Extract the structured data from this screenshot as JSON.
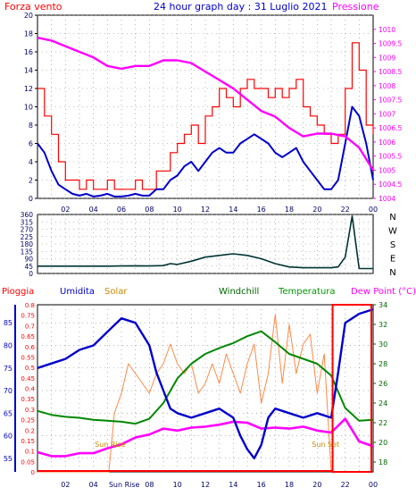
{
  "header": {
    "left_label": "Forza vento",
    "title": "24 hour graph day : 31 Luglio 2021",
    "right_label": "Pressione",
    "left_color": "#ff0000",
    "title_color": "#0000cc",
    "right_color": "#ff00ff"
  },
  "x_ticks": [
    "02",
    "04",
    "06",
    "08",
    "10",
    "12",
    "14",
    "16",
    "18",
    "20",
    "22",
    "00"
  ],
  "chart_data": [
    {
      "type": "line",
      "panel": "wind-pressure",
      "left_axis": {
        "label": "Forza vento",
        "ylim": [
          0,
          20
        ],
        "ticks": [
          0,
          2,
          4,
          6,
          8,
          10,
          12,
          14,
          16,
          18,
          20
        ]
      },
      "right_axis": {
        "label": "Pressione",
        "ylim": [
          1004,
          1010.5
        ],
        "ticks": [
          "1004",
          "1004.5",
          "1005",
          "1005.5",
          "1006",
          "1006.5",
          "1007",
          "1007.5",
          "1008",
          "1008.5",
          "1009",
          "1009.5",
          "1010"
        ]
      },
      "series": [
        {
          "name": "Forza vento",
          "color": "#ff0000",
          "axis": "left",
          "x": [
            0,
            0.5,
            1,
            1.5,
            2,
            2.5,
            3,
            3.5,
            4,
            4.5,
            5,
            5.5,
            6,
            6.5,
            7,
            7.5,
            8,
            8.5,
            9,
            9.5,
            10,
            10.5,
            11,
            11.5,
            12,
            12.5,
            13,
            13.5,
            14,
            14.5,
            15,
            15.5,
            16,
            16.5,
            17,
            17.5,
            18,
            18.5,
            19,
            19.5,
            20,
            20.5,
            21,
            21.5,
            22,
            22.5,
            23,
            23.5,
            24
          ],
          "values": [
            12,
            9,
            7,
            4,
            2,
            2,
            1,
            2,
            1,
            1,
            2,
            1,
            1,
            1,
            2,
            1,
            1,
            3,
            3,
            5,
            6,
            7,
            8,
            6,
            9,
            10,
            12,
            11,
            10,
            12,
            13,
            12,
            12,
            11,
            12,
            11,
            12,
            13,
            10,
            9,
            8,
            7,
            6,
            7,
            12,
            17,
            14,
            8,
            7
          ]
        },
        {
          "name": "",
          "color": "#0000cc",
          "axis": "left",
          "x": [
            0,
            0.5,
            1,
            1.5,
            2,
            2.5,
            3,
            3.5,
            4,
            4.5,
            5,
            5.5,
            6,
            6.5,
            7,
            7.5,
            8,
            8.5,
            9,
            9.5,
            10,
            10.5,
            11,
            11.5,
            12,
            12.5,
            13,
            13.5,
            14,
            14.5,
            15,
            15.5,
            16,
            16.5,
            17,
            17.5,
            18,
            18.5,
            19,
            19.5,
            20,
            20.5,
            21,
            21.5,
            22,
            22.5,
            23,
            23.5,
            24
          ],
          "values": [
            6,
            5,
            3,
            1.5,
            1,
            0.5,
            0.3,
            0.5,
            0.2,
            0.3,
            0.5,
            0.2,
            0.2,
            0.3,
            0.5,
            0.3,
            0.3,
            1,
            1,
            2,
            2.5,
            3.5,
            4,
            3,
            4,
            5,
            5.5,
            5,
            5,
            6,
            6.5,
            7,
            6.5,
            6,
            5,
            4.5,
            5,
            5.5,
            4,
            3,
            2,
            1,
            1,
            2,
            6,
            10,
            9,
            6,
            2
          ]
        },
        {
          "name": "Pressione",
          "color": "#ff00ff",
          "axis": "right",
          "x": [
            0,
            1,
            2,
            3,
            4,
            5,
            6,
            7,
            8,
            9,
            10,
            11,
            12,
            13,
            14,
            15,
            16,
            17,
            18,
            19,
            20,
            21,
            22,
            23,
            24
          ],
          "values": [
            1009.7,
            1009.6,
            1009.4,
            1009.2,
            1009.0,
            1008.7,
            1008.6,
            1008.7,
            1008.7,
            1008.9,
            1008.9,
            1008.8,
            1008.5,
            1008.2,
            1007.9,
            1007.5,
            1007.1,
            1006.9,
            1006.5,
            1006.2,
            1006.3,
            1006.3,
            1006.2,
            1005.8,
            1005.0
          ]
        }
      ]
    },
    {
      "type": "line",
      "panel": "wind-direction",
      "left_axis": {
        "ylim": [
          0,
          360
        ],
        "ticks": [
          0,
          45,
          90,
          135,
          180,
          225,
          270,
          315,
          360
        ]
      },
      "right_labels": [
        "N",
        "W",
        "S",
        "E",
        "N"
      ],
      "series": [
        {
          "name": "",
          "color": "#003333",
          "x": [
            0,
            1,
            2,
            3,
            4,
            5,
            6,
            7,
            8,
            9,
            9.5,
            10,
            11,
            12,
            13,
            14,
            15,
            16,
            17,
            18,
            19,
            20,
            21,
            21.5,
            22,
            22.5,
            23,
            24
          ],
          "values": [
            45,
            45,
            45,
            45,
            45,
            45,
            46,
            47,
            46,
            48,
            60,
            55,
            75,
            100,
            110,
            120,
            110,
            90,
            60,
            40,
            35,
            35,
            35,
            40,
            100,
            350,
            30,
            30
          ]
        }
      ]
    },
    {
      "type": "line",
      "panel": "humidity-temperature",
      "legend": [
        "Pioggia",
        "Umidita",
        "Solar",
        "Windchill",
        "Temperatura",
        "Dew Point (°C)"
      ],
      "legend_colors": [
        "#ff0000",
        "#0000cc",
        "#cc8800",
        "#006600",
        "#009900",
        "#ff00ff"
      ],
      "axis_rain": {
        "ylim": [
          0,
          0.8
        ],
        "ticks": [
          "0",
          "0.05",
          "0.1",
          "0.15",
          "0.2",
          "0.25",
          "0.3",
          "0.35",
          "0.4",
          "0.45",
          "0.5",
          "0.55",
          "0.6",
          "0.65",
          "0.7",
          "0.75",
          "0.8"
        ]
      },
      "axis_humidity": {
        "ylim": [
          52,
          89
        ],
        "ticks": [
          55,
          60,
          65,
          70,
          75,
          80,
          85
        ]
      },
      "axis_temperature": {
        "ylim": [
          17,
          34
        ],
        "ticks": [
          18,
          20,
          22,
          24,
          26,
          28,
          30,
          32,
          34
        ]
      },
      "annotations": [
        "Sun Rise",
        "Sun Set"
      ],
      "series": [
        {
          "name": "Umidita",
          "color": "#0000cc",
          "axis": "humidity",
          "x": [
            0,
            1,
            2,
            3,
            4,
            5,
            6,
            7,
            8,
            8.5,
            9,
            9.5,
            10,
            11,
            12,
            13,
            14,
            14.5,
            15,
            15.5,
            16,
            16.5,
            17,
            18,
            19,
            20,
            21,
            21.5,
            22,
            22.5,
            23,
            24
          ],
          "values": [
            75,
            76,
            77,
            79,
            80,
            83,
            86,
            85,
            80,
            74,
            70,
            66,
            65,
            64,
            65,
            66,
            64,
            60,
            57,
            55,
            58,
            64,
            66,
            65,
            64,
            65,
            64,
            74,
            85,
            86,
            87,
            88
          ]
        },
        {
          "name": "Temperatura",
          "color": "#008800",
          "axis": "temperature",
          "x": [
            0,
            1,
            2,
            3,
            4,
            5,
            6,
            7,
            8,
            9,
            10,
            11,
            12,
            13,
            14,
            15,
            16,
            17,
            18,
            19,
            20,
            21,
            22,
            23,
            24
          ],
          "values": [
            23.2,
            22.8,
            22.6,
            22.5,
            22.3,
            22.2,
            22.1,
            21.9,
            22.4,
            24.0,
            26.5,
            28.0,
            29.0,
            29.6,
            30.1,
            30.8,
            31.3,
            30.2,
            29.0,
            28.5,
            28.0,
            26.8,
            23.5,
            22.2,
            22.3
          ]
        },
        {
          "name": "Dew Point (°C)",
          "color": "#ff00ff",
          "axis": "temperature",
          "x": [
            0,
            1,
            2,
            3,
            4,
            5,
            6,
            7,
            8,
            9,
            10,
            11,
            12,
            13,
            14,
            15,
            16,
            17,
            18,
            19,
            20,
            21,
            22,
            23,
            24
          ],
          "values": [
            19.0,
            18.6,
            18.6,
            18.9,
            18.9,
            19.4,
            19.8,
            20.5,
            20.8,
            21.4,
            21.2,
            21.5,
            21.6,
            21.8,
            22.1,
            22.0,
            21.4,
            21.5,
            21.4,
            21.6,
            21.2,
            21.0,
            22.4,
            20.1,
            19.6
          ]
        },
        {
          "name": "Solar",
          "color": "#ff8844",
          "axis": "temperature",
          "x": [
            0,
            5.1,
            5.5,
            6,
            6.5,
            7,
            7.5,
            8,
            8.5,
            9,
            9.5,
            10,
            10.5,
            11,
            11.5,
            12,
            12.5,
            13,
            13.5,
            14,
            14.5,
            15,
            15.5,
            16,
            16.5,
            17,
            17.5,
            18,
            18.5,
            19,
            19.5,
            20,
            20.5,
            21
          ],
          "values": [
            17,
            17,
            23,
            25,
            28,
            27,
            26,
            25,
            27,
            28,
            30,
            28,
            27,
            28,
            25,
            26,
            28,
            26,
            29,
            27,
            25,
            28,
            30,
            24,
            27,
            33,
            26,
            32,
            27,
            30,
            31,
            25,
            29,
            17
          ]
        },
        {
          "name": "Pioggia",
          "color": "#ff0000",
          "axis": "rain",
          "x": [
            0,
            21,
            21.1,
            24
          ],
          "values": [
            0,
            0,
            0.8,
            0.8
          ]
        }
      ]
    }
  ]
}
